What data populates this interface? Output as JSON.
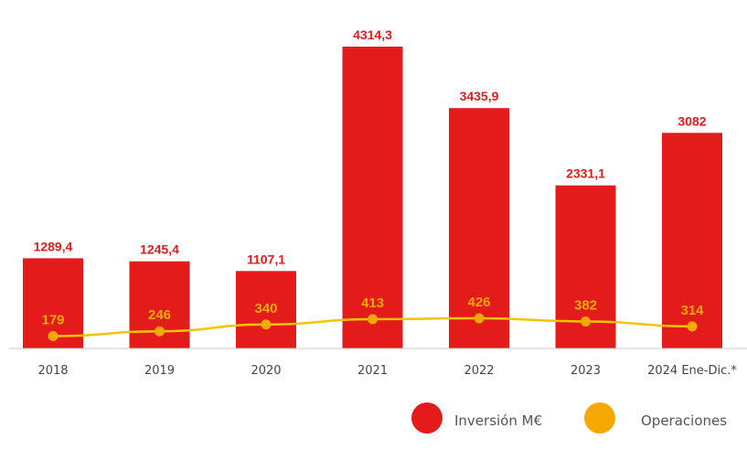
{
  "chart_data": {
    "type": "bar",
    "title": "",
    "xlabel": "",
    "ylabel": "",
    "categories": [
      "2018",
      "2019",
      "2020",
      "2021",
      "2022",
      "2023",
      "2024 Ene-Dic.*"
    ],
    "series": [
      {
        "name": "Inversión M€",
        "type": "bar",
        "values": [
          1289.4,
          1245.4,
          1107.1,
          4314.3,
          3435.9,
          2331.1,
          3082
        ],
        "labels": [
          "1289,4",
          "1245,4",
          "1107,1",
          "4314,3",
          "3435,9",
          "2331,1",
          "3082"
        ],
        "color": "#e31b1b"
      },
      {
        "name": "Operaciones",
        "type": "line",
        "values": [
          179,
          246,
          340,
          413,
          426,
          382,
          314
        ],
        "labels": [
          "179",
          "246",
          "340",
          "413",
          "426",
          "382",
          "314"
        ],
        "color": "#f5a800",
        "line_color": "#f5c400"
      }
    ],
    "bar_ylim": [
      0,
      4314.3
    ],
    "line_ylim": [
      0,
      426
    ],
    "grid": false,
    "legend_position": "bottom-right"
  }
}
